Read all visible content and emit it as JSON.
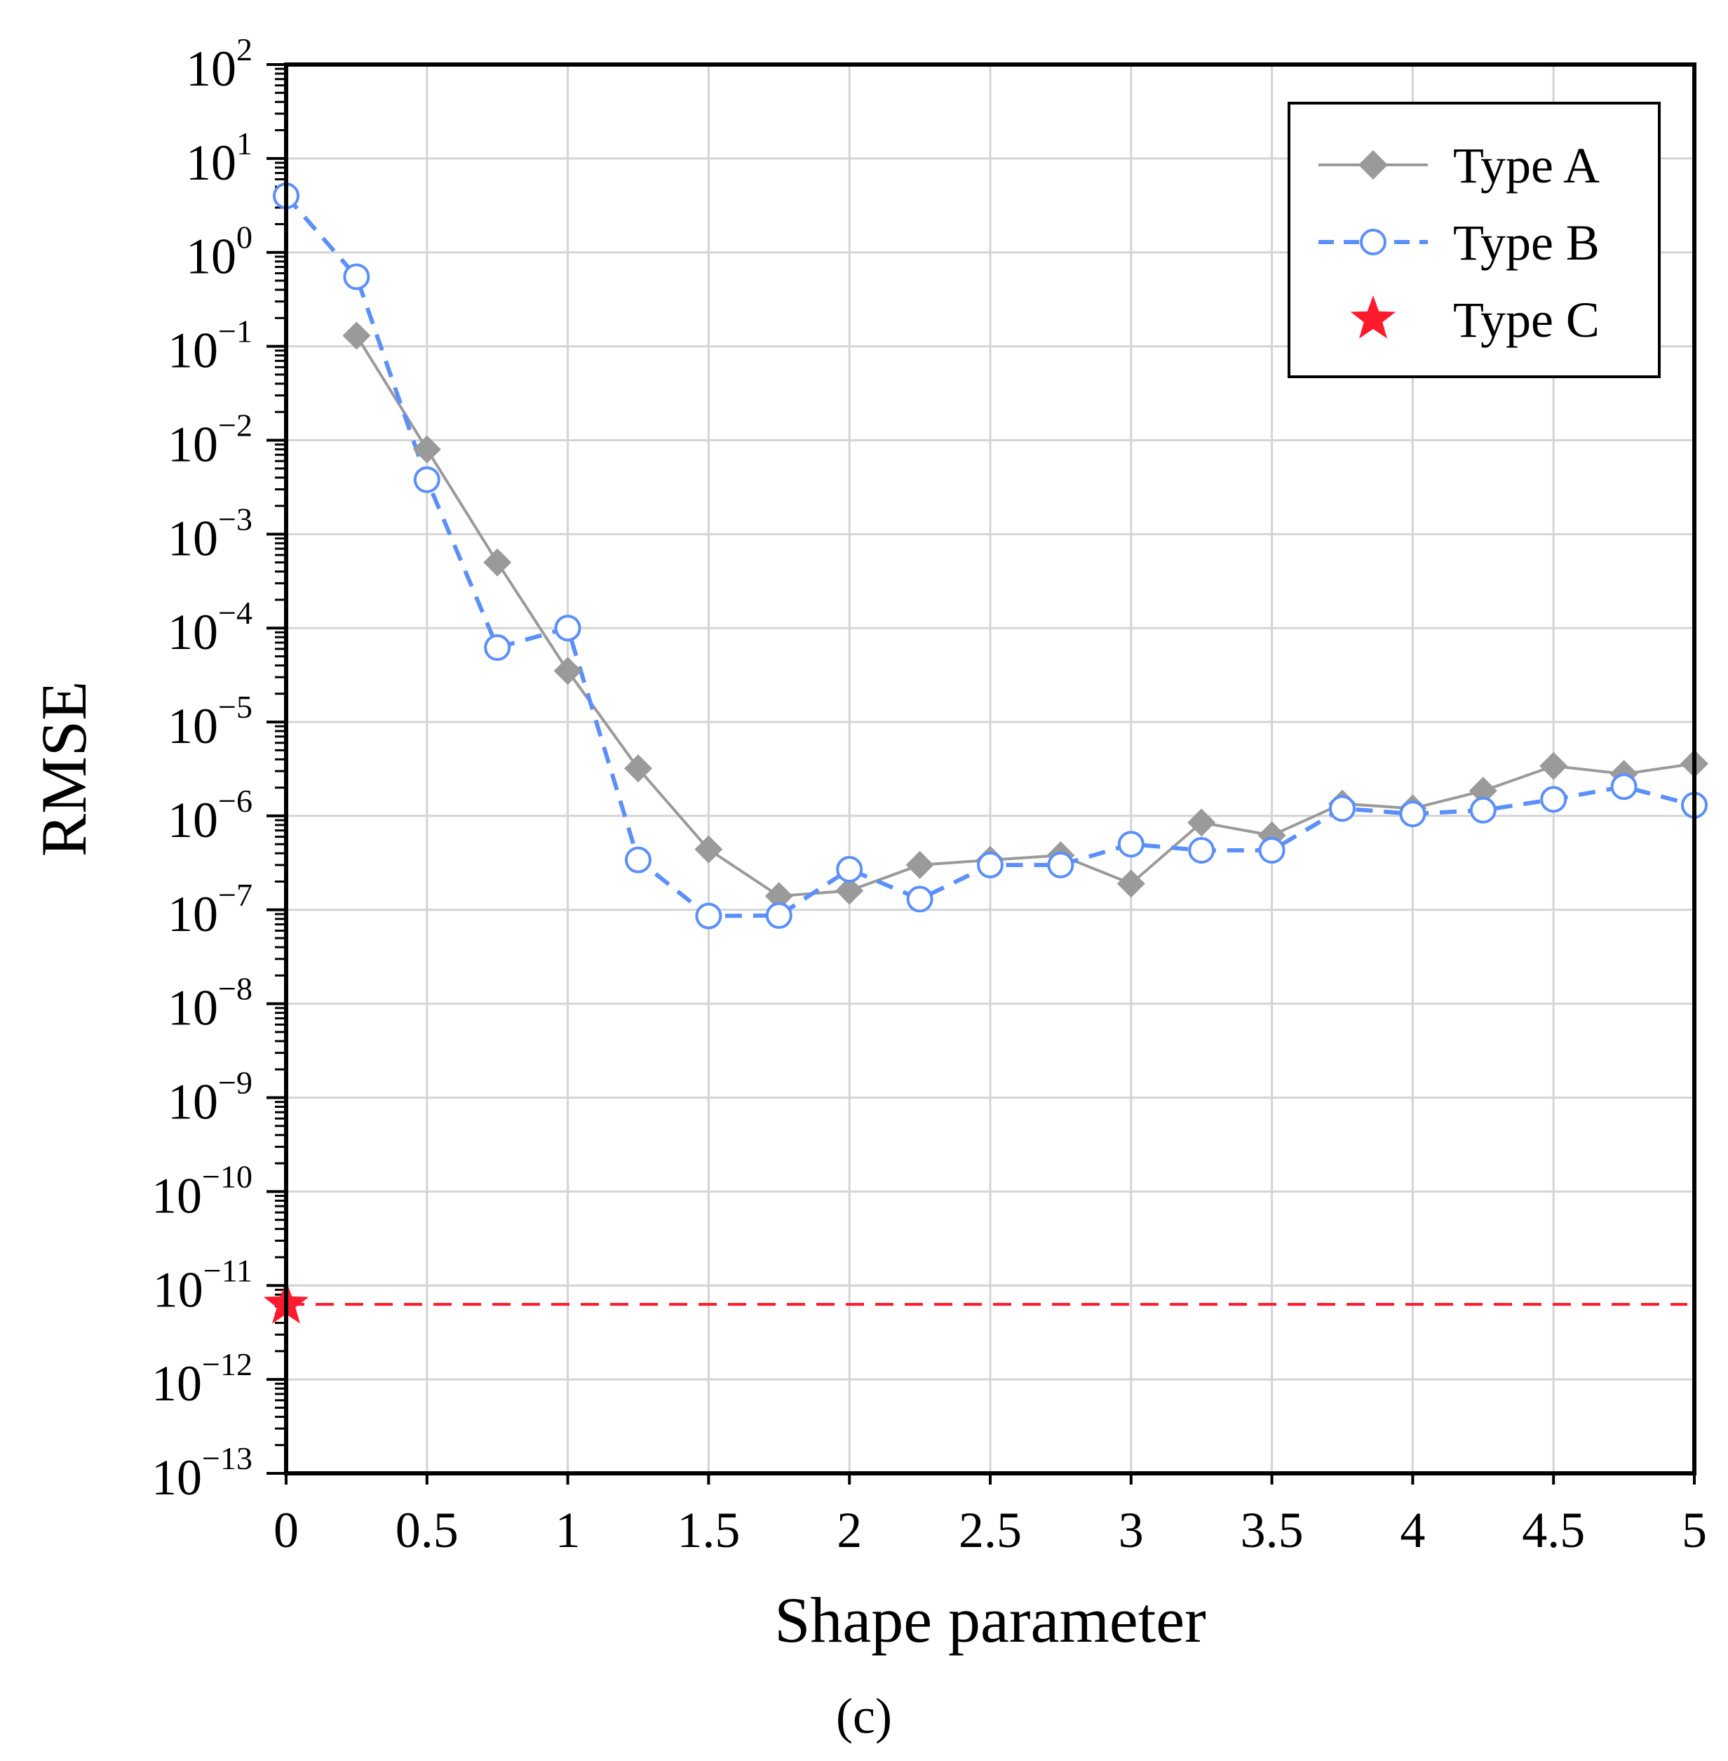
{
  "chart_data": {
    "type": "line",
    "title": "",
    "xlabel": "Shape parameter",
    "ylabel": "RMSE",
    "panel_label": "(c)",
    "xlim": [
      0,
      5
    ],
    "ylim_log10": [
      -13,
      2
    ],
    "y_scale": "log",
    "grid": true,
    "legend_position": "top-right",
    "x_ticks": [
      "0",
      "0.5",
      "1",
      "1.5",
      "2",
      "2.5",
      "3",
      "3.5",
      "4",
      "4.5",
      "5"
    ],
    "y_ticks": [
      {
        "base": "10",
        "exp": "2"
      },
      {
        "base": "10",
        "exp": "1"
      },
      {
        "base": "10",
        "exp": "0"
      },
      {
        "base": "10",
        "exp": "−1"
      },
      {
        "base": "10",
        "exp": "−2"
      },
      {
        "base": "10",
        "exp": "−3"
      },
      {
        "base": "10",
        "exp": "−4"
      },
      {
        "base": "10",
        "exp": "−5"
      },
      {
        "base": "10",
        "exp": "−6"
      },
      {
        "base": "10",
        "exp": "−7"
      },
      {
        "base": "10",
        "exp": "−8"
      },
      {
        "base": "10",
        "exp": "−9"
      },
      {
        "base": "10",
        "exp": "−10"
      },
      {
        "base": "10",
        "exp": "−11"
      },
      {
        "base": "10",
        "exp": "−12"
      },
      {
        "base": "10",
        "exp": "−13"
      }
    ],
    "series": [
      {
        "name": "Type A",
        "color": "#9a9a9a",
        "marker": "diamond",
        "line": "solid",
        "x": [
          0.25,
          0.5,
          0.75,
          1.0,
          1.25,
          1.5,
          1.75,
          2.0,
          2.25,
          2.5,
          2.75,
          3.0,
          3.25,
          3.5,
          3.75,
          4.0,
          4.25,
          4.5,
          4.75,
          5.0
        ],
        "y": [
          0.13,
          0.008,
          0.0005,
          3.5e-05,
          3.2e-06,
          4.4e-07,
          1.4e-07,
          1.6e-07,
          3e-07,
          3.4e-07,
          3.8e-07,
          1.9e-07,
          8.5e-07,
          6.2e-07,
          1.35e-06,
          1.2e-06,
          1.85e-06,
          3.4e-06,
          2.8e-06,
          3.6e-06
        ]
      },
      {
        "name": "Type B",
        "color": "#5b8ff9",
        "marker": "open-circle",
        "line": "dashed",
        "x": [
          0.0,
          0.25,
          0.5,
          0.75,
          1.0,
          1.25,
          1.5,
          1.75,
          2.0,
          2.25,
          2.5,
          2.75,
          3.0,
          3.25,
          3.5,
          3.75,
          4.0,
          4.25,
          4.5,
          4.75,
          5.0
        ],
        "y": [
          4.0,
          0.55,
          0.0038,
          6.2e-05,
          0.0001,
          3.4e-07,
          8.6e-08,
          8.7e-08,
          2.7e-07,
          1.3e-07,
          3e-07,
          3e-07,
          5e-07,
          4.3e-07,
          4.3e-07,
          1.2e-06,
          1.05e-06,
          1.15e-06,
          1.5e-06,
          2.05e-06,
          1.3e-06
        ]
      },
      {
        "name": "Type C",
        "color": "#ff1a2e",
        "marker": "star",
        "line": "none",
        "x": [
          0.0
        ],
        "y": [
          6.3e-12
        ],
        "reference_line_y": 6.3e-12
      }
    ]
  }
}
